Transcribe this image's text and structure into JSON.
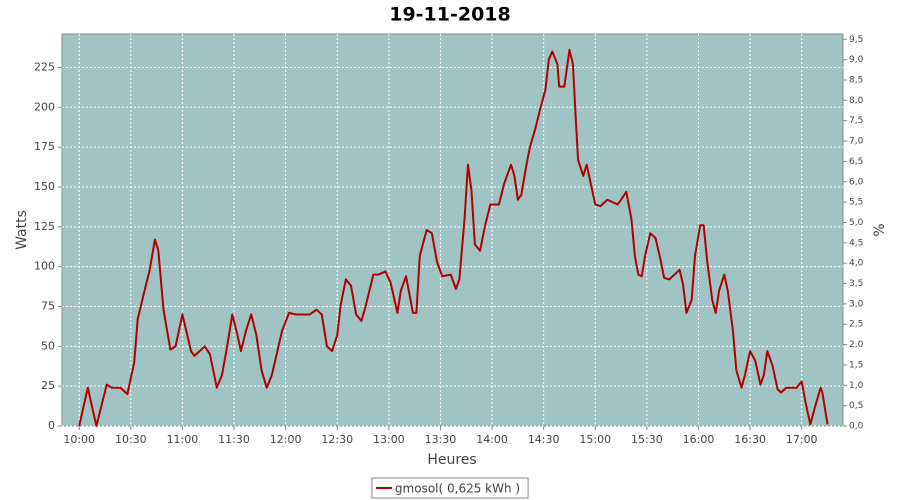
{
  "chart_data": {
    "type": "line",
    "title": "19-11-2018",
    "x_label": "Heures",
    "y_label": "Watts",
    "y2_label": "%",
    "x": [
      "10:00",
      "10:05",
      "10:10",
      "10:16",
      "10:19",
      "10:24",
      "10:28",
      "10:32",
      "10:34",
      "10:38",
      "10:41",
      "10:44",
      "10:46",
      "10:49",
      "10:53",
      "10:56",
      "11:00",
      "11:05",
      "11:07",
      "11:10",
      "11:13",
      "11:16",
      "11:20",
      "11:23",
      "11:26",
      "11:29",
      "11:32",
      "11:34",
      "11:37",
      "11:40",
      "11:43",
      "11:46",
      "11:49",
      "11:52",
      "11:58",
      "12:02",
      "12:06",
      "12:14",
      "12:18",
      "12:21",
      "12:24",
      "12:27",
      "12:30",
      "12:32",
      "12:35",
      "12:38",
      "12:41",
      "12:44",
      "12:46",
      "12:51",
      "12:54",
      "12:58",
      "13:01",
      "13:05",
      "13:07",
      "13:10",
      "13:14",
      "13:16",
      "13:18",
      "13:22",
      "13:25",
      "13:28",
      "13:31",
      "13:36",
      "13:39",
      "13:41",
      "13:44",
      "13:46",
      "13:48",
      "13:50",
      "13:53",
      "13:56",
      "13:59",
      "14:04",
      "14:07",
      "14:11",
      "14:13",
      "14:15",
      "14:17",
      "14:20",
      "14:22",
      "14:25",
      "14:28",
      "14:31",
      "14:33",
      "14:35",
      "14:38",
      "14:39",
      "14:42",
      "14:45",
      "14:47",
      "14:49",
      "14:50",
      "14:53",
      "14:55",
      "14:57",
      "15:00",
      "15:03",
      "15:07",
      "15:13",
      "15:15",
      "15:18",
      "15:21",
      "15:23",
      "15:25",
      "15:27",
      "15:29",
      "15:32",
      "15:35",
      "15:38",
      "15:40",
      "15:43",
      "15:49",
      "15:51",
      "15:53",
      "15:56",
      "15:58",
      "16:01",
      "16:03",
      "16:05",
      "16:08",
      "16:10",
      "16:12",
      "16:15",
      "16:17",
      "16:20",
      "16:22",
      "16:25",
      "16:27",
      "16:30",
      "16:33",
      "16:36",
      "16:38",
      "16:40",
      "16:43",
      "16:46",
      "16:48",
      "16:51",
      "16:57",
      "17:00",
      "17:02",
      "17:05",
      "17:08",
      "17:11",
      "17:12",
      "17:15"
    ],
    "series": [
      {
        "name": "gmosol( 0,625 kWh )",
        "color": "#b00000",
        "values": [
          0,
          24,
          0,
          26,
          24,
          24,
          20,
          40,
          67,
          85,
          98,
          117,
          110,
          73,
          48,
          50,
          70,
          47,
          44,
          47,
          50,
          45,
          24,
          32,
          50,
          70,
          57,
          47,
          60,
          70,
          57,
          35,
          24,
          32,
          60,
          71,
          70,
          70,
          73,
          70,
          50,
          47,
          57,
          76,
          92,
          88,
          70,
          66,
          73,
          95,
          95,
          97,
          90,
          71,
          85,
          94,
          71,
          71,
          107,
          123,
          121,
          103,
          94,
          95,
          86,
          92,
          130,
          164,
          148,
          114,
          110,
          126,
          139,
          139,
          152,
          164,
          157,
          142,
          145,
          164,
          175,
          186,
          199,
          211,
          230,
          235,
          227,
          213,
          213,
          236,
          227,
          186,
          167,
          157,
          164,
          154,
          139,
          138,
          142,
          139,
          142,
          147,
          130,
          107,
          95,
          94,
          107,
          121,
          118,
          104,
          93,
          92,
          98,
          89,
          71,
          79,
          107,
          126,
          126,
          104,
          79,
          71,
          85,
          95,
          85,
          60,
          35,
          24,
          32,
          47,
          41,
          26,
          32,
          47,
          38,
          23,
          21,
          24,
          24,
          28,
          16,
          1,
          13,
          24,
          21,
          1
        ]
      }
    ],
    "xlim": [
      "09:50",
      "17:24"
    ],
    "xticks": [
      "10:00",
      "10:30",
      "11:00",
      "11:30",
      "12:00",
      "12:30",
      "13:00",
      "13:30",
      "14:00",
      "14:30",
      "15:00",
      "15:30",
      "16:00",
      "16:30",
      "17:00"
    ],
    "ylim": [
      0,
      246
    ],
    "yticks": [
      0,
      25,
      50,
      75,
      100,
      125,
      150,
      175,
      200,
      225
    ],
    "y2lim": [
      0,
      9.63
    ],
    "y2ticks": [
      {
        "value": 0,
        "label": "0,0"
      },
      {
        "value": 0.5,
        "label": "0,5"
      },
      {
        "value": 1,
        "label": "1,0"
      },
      {
        "value": 1.5,
        "label": "1,5"
      },
      {
        "value": 2,
        "label": "2,0"
      },
      {
        "value": 2.5,
        "label": "2,5"
      },
      {
        "value": 3,
        "label": "3,0"
      },
      {
        "value": 3.5,
        "label": "3,5"
      },
      {
        "value": 4,
        "label": "4,0"
      },
      {
        "value": 4.5,
        "label": "4,5"
      },
      {
        "value": 5,
        "label": "5,0"
      },
      {
        "value": 5.5,
        "label": "5,5"
      },
      {
        "value": 6,
        "label": "6,0"
      },
      {
        "value": 6.5,
        "label": "6,5"
      },
      {
        "value": 7,
        "label": "7,0"
      },
      {
        "value": 7.5,
        "label": "7,5"
      },
      {
        "value": 8,
        "label": "8,0"
      },
      {
        "value": 8.5,
        "label": "8,5"
      },
      {
        "value": 9,
        "label": "9,0"
      },
      {
        "value": 9.5,
        "label": "9,5"
      }
    ],
    "grid": true,
    "plot_color": "#a0c4c4",
    "legend": "bottom"
  }
}
